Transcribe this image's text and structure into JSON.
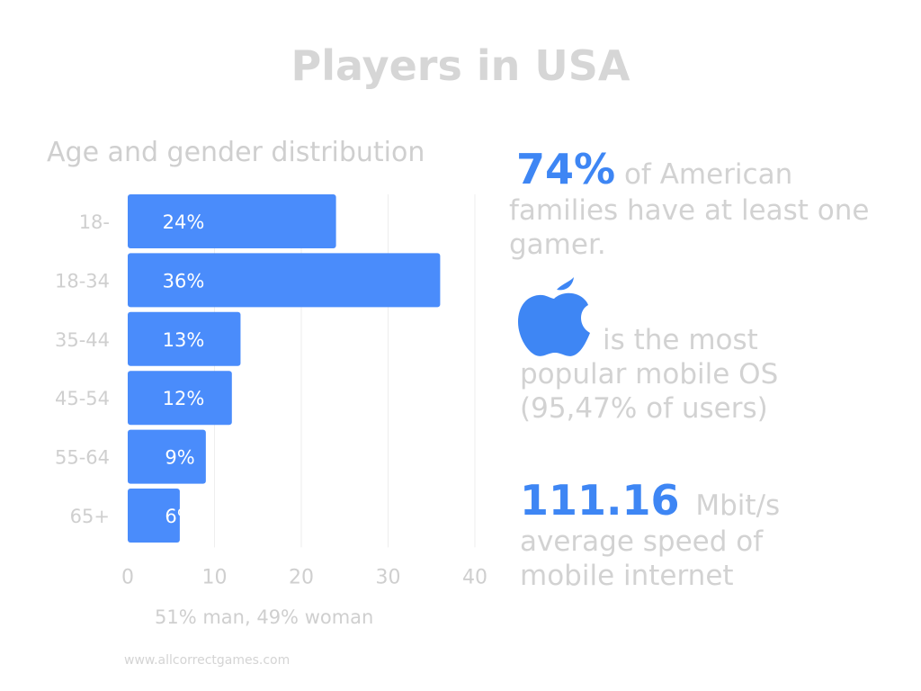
{
  "title": "Players in USA",
  "chart_data": {
    "type": "bar",
    "orientation": "horizontal",
    "title": "Age and gender distribution",
    "categories": [
      "18-",
      "18-34",
      "35-44",
      "45-54",
      "55-64",
      "65+"
    ],
    "values": [
      24,
      36,
      13,
      12,
      9,
      6
    ],
    "data_labels": [
      "24%",
      "36%",
      "13%",
      "12%",
      "9%",
      "6%"
    ],
    "xlim": [
      0,
      40
    ],
    "x_ticks": [
      0,
      10,
      20,
      30,
      40
    ],
    "grid": true,
    "bar_color": "#4a8cfb",
    "caption": "51% man, 49% woman"
  },
  "facts": {
    "families": {
      "highlight": "74%",
      "text_1": "of American",
      "text_2": "families have at least one gamer."
    },
    "mobile_os": {
      "icon": "apple-icon",
      "line_1": "is the most",
      "line_2": "popular mobile OS",
      "line_3": "(95,47% of users)"
    },
    "internet_speed": {
      "highlight": "111.16",
      "unit": "Mbit/s",
      "line_2": "average speed of",
      "line_3": "mobile internet"
    }
  },
  "accent_color": "#3e86f4",
  "footer": {
    "website": "www.allcorrectgames.com"
  }
}
